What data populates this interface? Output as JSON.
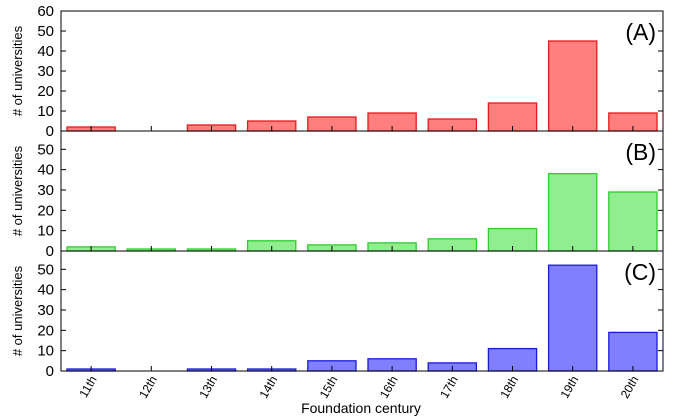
{
  "chart_data": [
    {
      "type": "bar",
      "tag": "(A)",
      "ylabel": "# of universities",
      "ylim": [
        0,
        60
      ],
      "yticks": [
        "0",
        "10",
        "20",
        "30",
        "40",
        "50",
        "60"
      ],
      "color": {
        "fill": "#ff7f7f",
        "stroke": "#e41a1c"
      },
      "values": [
        2,
        0,
        3,
        5,
        7,
        9,
        6,
        14,
        45,
        9
      ]
    },
    {
      "type": "bar",
      "tag": "(B)",
      "ylabel": "# of universities",
      "ylim": [
        0,
        59
      ],
      "yticks": [
        "0",
        "10",
        "20",
        "30",
        "40",
        "50"
      ],
      "color": {
        "fill": "#90ee90",
        "stroke": "#2ecc2e"
      },
      "values": [
        2,
        1,
        1,
        5,
        3,
        4,
        6,
        11,
        38,
        29
      ]
    },
    {
      "type": "bar",
      "tag": "(C)",
      "ylabel": "# of universities",
      "ylim": [
        0,
        59
      ],
      "yticks": [
        "0",
        "10",
        "20",
        "30",
        "40",
        "50"
      ],
      "color": {
        "fill": "#8080ff",
        "stroke": "#1a1adc"
      },
      "values": [
        1,
        0,
        1,
        1,
        5,
        6,
        4,
        11,
        52,
        19
      ]
    }
  ],
  "categories": [
    "11th",
    "12th",
    "13th",
    "14th",
    "15th",
    "16th",
    "17th",
    "18th",
    "19th",
    "20th"
  ],
  "xlabel": "Foundation century"
}
